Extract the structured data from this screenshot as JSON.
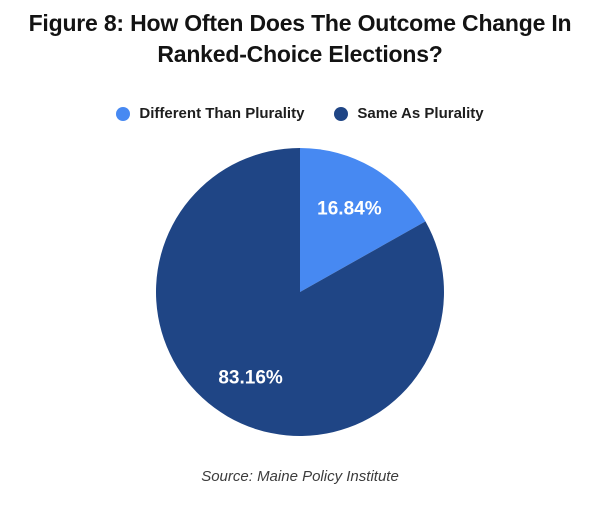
{
  "chart_data": {
    "type": "pie",
    "title": "Figure 8: How Often Does The Outcome Change In Ranked-Choice Elections?",
    "legend_position": "top",
    "start_angle_deg": 0,
    "direction": "clockwise",
    "slices": [
      {
        "label": "Different Than Plurality",
        "value": 16.84,
        "display": "16.84%",
        "color": "#4789F2"
      },
      {
        "label": "Same As Plurality",
        "value": 83.16,
        "display": "83.16%",
        "color": "#1F4585"
      }
    ],
    "label_color": "#ffffff"
  },
  "footer": {
    "source_label": "Source: Maine Policy Institute"
  }
}
